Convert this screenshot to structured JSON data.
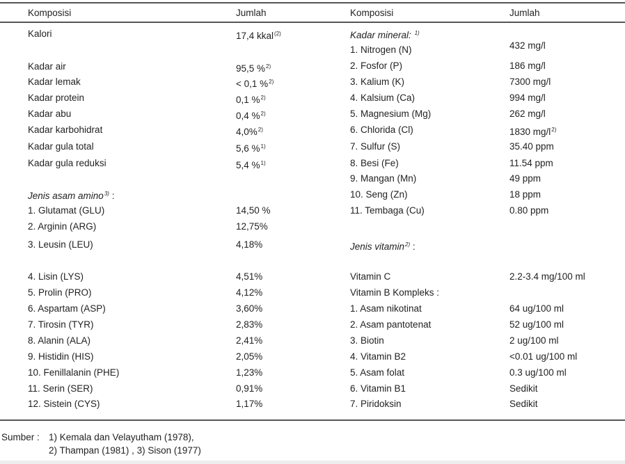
{
  "header": {
    "col1": "Komposisi",
    "col2": "Jumlah",
    "col3": "Komposisi",
    "col4": "Jumlah"
  },
  "left_rows": [
    {
      "label": "Kalori",
      "value": "17,4 kkal",
      "sup": "(2)"
    },
    {
      "label": "Kadar air",
      "value": "95,5 %",
      "sup": "2)"
    },
    {
      "label": "Kadar lemak",
      "value": "< 0,1 %",
      "sup": "2)"
    },
    {
      "label": "Kadar protein",
      "value": "0,1 %",
      "sup": "2)"
    },
    {
      "label": "Kadar abu",
      "value": "0,4 %",
      "sup": "2)"
    },
    {
      "label": "Kadar karbohidrat",
      "value": "4,0%",
      "sup": "2)"
    },
    {
      "label": "Kadar gula total",
      "value": "5,6 %",
      "sup": "1)"
    },
    {
      "label": "Kadar gula reduksi",
      "value": "5,4 %",
      "sup": "1)"
    },
    {
      "label": "Jenis asam amino",
      "label_sup": "3)",
      "label_suffix": " :",
      "italic": true,
      "value": ""
    },
    {
      "label": "1.  Glutamat  (GLU)",
      "value": "14,50 %"
    },
    {
      "label": "2.  Arginin  (ARG)",
      "value": "12,75%"
    },
    {
      "label": "3.  Leusin  (LEU)",
      "value": "4,18%"
    },
    {
      "label": "4.  Lisin  (LYS)",
      "value": "4,51%"
    },
    {
      "label": "5.  Prolin (PRO)",
      "value": "4,12%"
    },
    {
      "label": "6.  Aspartam  (ASP)",
      "value": "3,60%"
    },
    {
      "label": "7.  Tirosin  (TYR)",
      "value": "2,83%"
    },
    {
      "label": "8.  Alanin  (ALA)",
      "value": "2,41%"
    },
    {
      "label": "9.  Histidin  (HIS)",
      "value": "2,05%"
    },
    {
      "label": "10. Fenillalanin (PHE)",
      "value": "1,23%"
    },
    {
      "label": "11. Serin  (SER)",
      "value": "0,91%"
    },
    {
      "label": "12. Sistein  (CYS)",
      "value": "1,17%"
    }
  ],
  "right_rows": [
    {
      "label": "Kadar mineral",
      "label_suffix": ": ",
      "label_sup": "1)",
      "italic": true,
      "value": ""
    },
    {
      "label": "1.  Nitrogen (N)",
      "value": "432 mg/l"
    },
    {
      "label": "2.  Fosfor (P)",
      "value": "186 mg/l"
    },
    {
      "label": "3.  Kalium (K)",
      "value": "7300 mg/l"
    },
    {
      "label": "4.  Kalsium (Ca)",
      "value": "994 mg/l"
    },
    {
      "label": "5.  Magnesium (Mg)",
      "value": "262 mg/l"
    },
    {
      "label": "6.  Chlorida (Cl)",
      "value": "1830 mg/l",
      "sup": "2)"
    },
    {
      "label": "7.  Sulfur (S)",
      "value": "35.40 ppm"
    },
    {
      "label": "8.  Besi (Fe)",
      "value": "11.54 ppm"
    },
    {
      "label": "9.  Mangan (Mn)",
      "value": "49 ppm"
    },
    {
      "label": "10. Seng (Zn)",
      "value": "18 ppm"
    },
    {
      "label": "11. Tembaga (Cu)",
      "value": "0.80 ppm"
    },
    {
      "label": "Jenis vitamin",
      "label_sup": "2)",
      "label_suffix": " :",
      "italic": true,
      "value": ""
    },
    {
      "label": "Vitamin C",
      "value": "2.2-3.4 mg/100 ml"
    },
    {
      "label": "Vitamin   B Kompleks :",
      "value": ""
    },
    {
      "label": "1.  Asam nikotinat",
      "value": "64 ug/100 ml"
    },
    {
      "label": "2.  Asam pantotenat",
      "value": "52 ug/100 ml"
    },
    {
      "label": "3.  Biotin",
      "value": "2 ug/100 ml"
    },
    {
      "label": "4.  Vitamin B2",
      "value": "<0.01 ug/100 ml"
    },
    {
      "label": "5.  Asam folat",
      "value": "0.3 ug/100 ml"
    },
    {
      "label": "6.  Vitamin B1",
      "value": "Sedikit"
    },
    {
      "label": "7.  Piridoksin",
      "value": "Sedikit"
    }
  ],
  "footer": {
    "label": "Sumber :",
    "line1": "1) Kemala dan Velayutham (1978),",
    "line2": "2) Thampan (1981) ,  3) Sison (1977)"
  }
}
